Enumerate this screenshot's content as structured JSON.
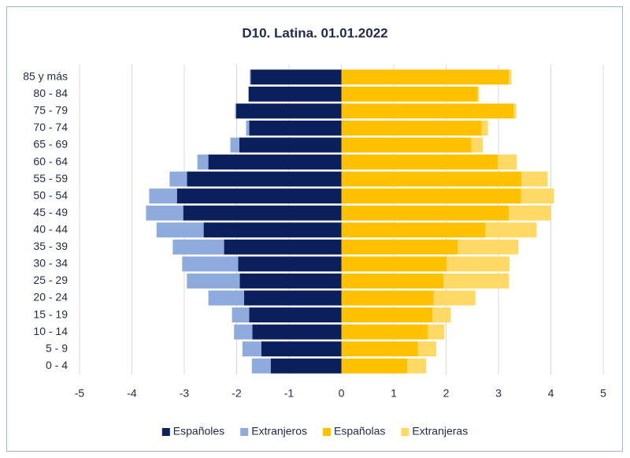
{
  "chart_data": {
    "type": "bar",
    "stacked": true,
    "title": "D10. Latina. 01.01.2022",
    "categories": [
      "85 y más",
      "80 - 84",
      "75 - 79",
      "70 - 74",
      "65 - 69",
      "60 - 64",
      "55 - 59",
      "50 - 54",
      "45 - 49",
      "40 - 44",
      "35 - 39",
      "30 - 34",
      "25 - 29",
      "20 - 24",
      "15 - 19",
      "10 - 14",
      "5 - 9",
      "0 - 4"
    ],
    "series": [
      {
        "name": "Españoles",
        "color": "#0b1f5c",
        "values": [
          -1.73,
          -1.77,
          -2.01,
          -1.76,
          -1.95,
          -2.54,
          -2.95,
          -3.14,
          -3.02,
          -2.63,
          -2.24,
          -1.97,
          -1.94,
          -1.86,
          -1.76,
          -1.7,
          -1.53,
          -1.35
        ]
      },
      {
        "name": "Extranjeros",
        "color": "#8faadc",
        "values": [
          -0.02,
          -0.01,
          -0.02,
          -0.06,
          -0.17,
          -0.21,
          -0.33,
          -0.53,
          -0.71,
          -0.9,
          -0.98,
          -1.07,
          -1.01,
          -0.68,
          -0.33,
          -0.35,
          -0.36,
          -0.36
        ]
      },
      {
        "name": "Españolas",
        "color": "#ffc000",
        "values": [
          3.2,
          2.6,
          3.29,
          2.68,
          2.48,
          2.99,
          3.44,
          3.43,
          3.2,
          2.75,
          2.22,
          2.01,
          1.95,
          1.76,
          1.74,
          1.65,
          1.46,
          1.26
        ]
      },
      {
        "name": "Extranjeras",
        "color": "#ffd966",
        "values": [
          0.05,
          0.03,
          0.05,
          0.12,
          0.22,
          0.36,
          0.5,
          0.63,
          0.8,
          0.98,
          1.16,
          1.2,
          1.25,
          0.8,
          0.35,
          0.32,
          0.35,
          0.36
        ]
      }
    ],
    "xlim": [
      -5,
      5
    ],
    "xticks": [
      -5,
      -4,
      -3,
      -2,
      -1,
      0,
      1,
      2,
      3,
      4,
      5
    ],
    "grid": true,
    "legend": "bottom"
  }
}
